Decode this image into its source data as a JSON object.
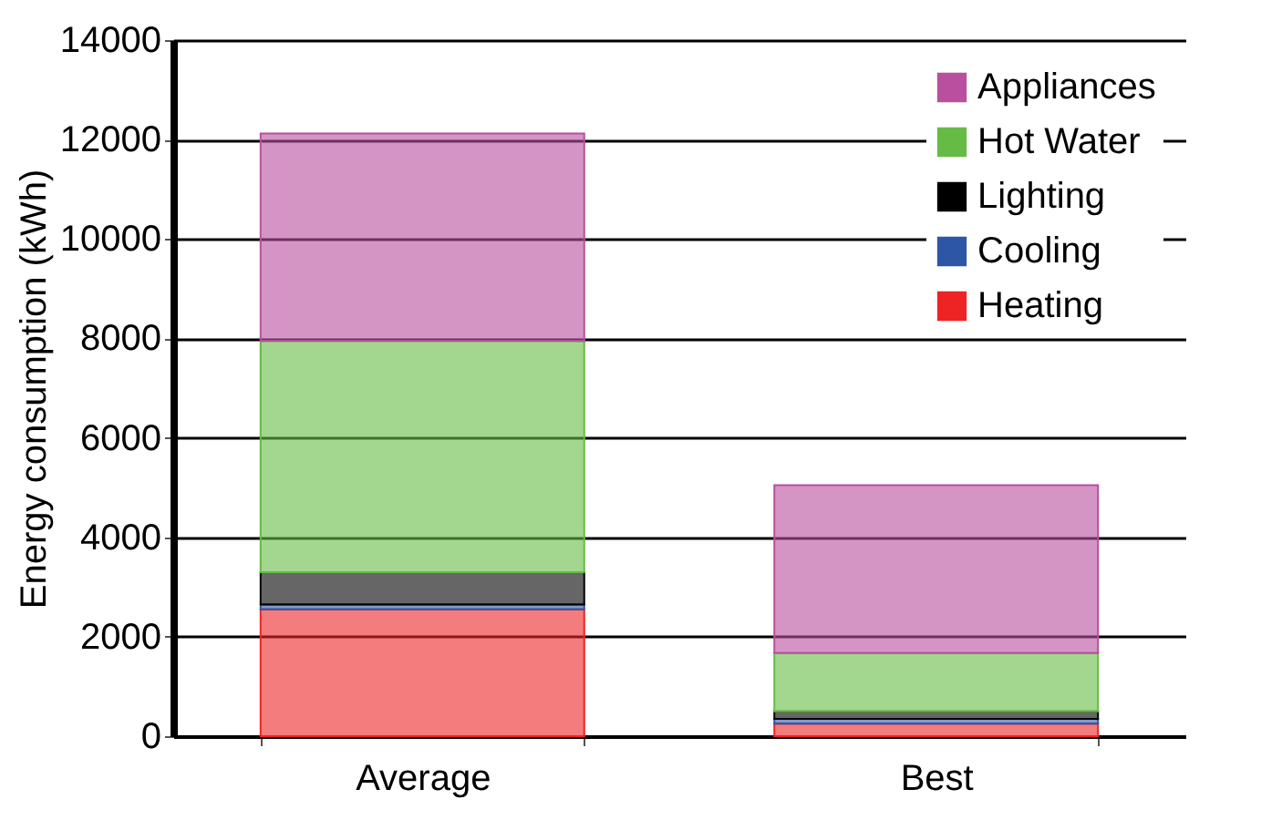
{
  "chart_data": {
    "type": "bar",
    "stacked": true,
    "ylabel": "Energy consumption (kWh)",
    "categories": [
      "Average",
      "Best"
    ],
    "series": [
      {
        "name": "Heating",
        "color": "#ee2424",
        "values": [
          2550,
          250
        ]
      },
      {
        "name": "Cooling",
        "color": "#2e56a6",
        "values": [
          100,
          100
        ]
      },
      {
        "name": "Lighting",
        "color": "#000000",
        "values": [
          650,
          150
        ]
      },
      {
        "name": "Hot Water",
        "color": "#66bb44",
        "values": [
          4650,
          1170
        ]
      },
      {
        "name": "Appliances",
        "color": "#b84f9f",
        "values": [
          4170,
          3380
        ]
      }
    ],
    "ylim": [
      0,
      14000
    ],
    "yticks": [
      0,
      2000,
      4000,
      6000,
      8000,
      10000,
      12000,
      14000
    ],
    "grid": "y",
    "legend": "top right"
  }
}
